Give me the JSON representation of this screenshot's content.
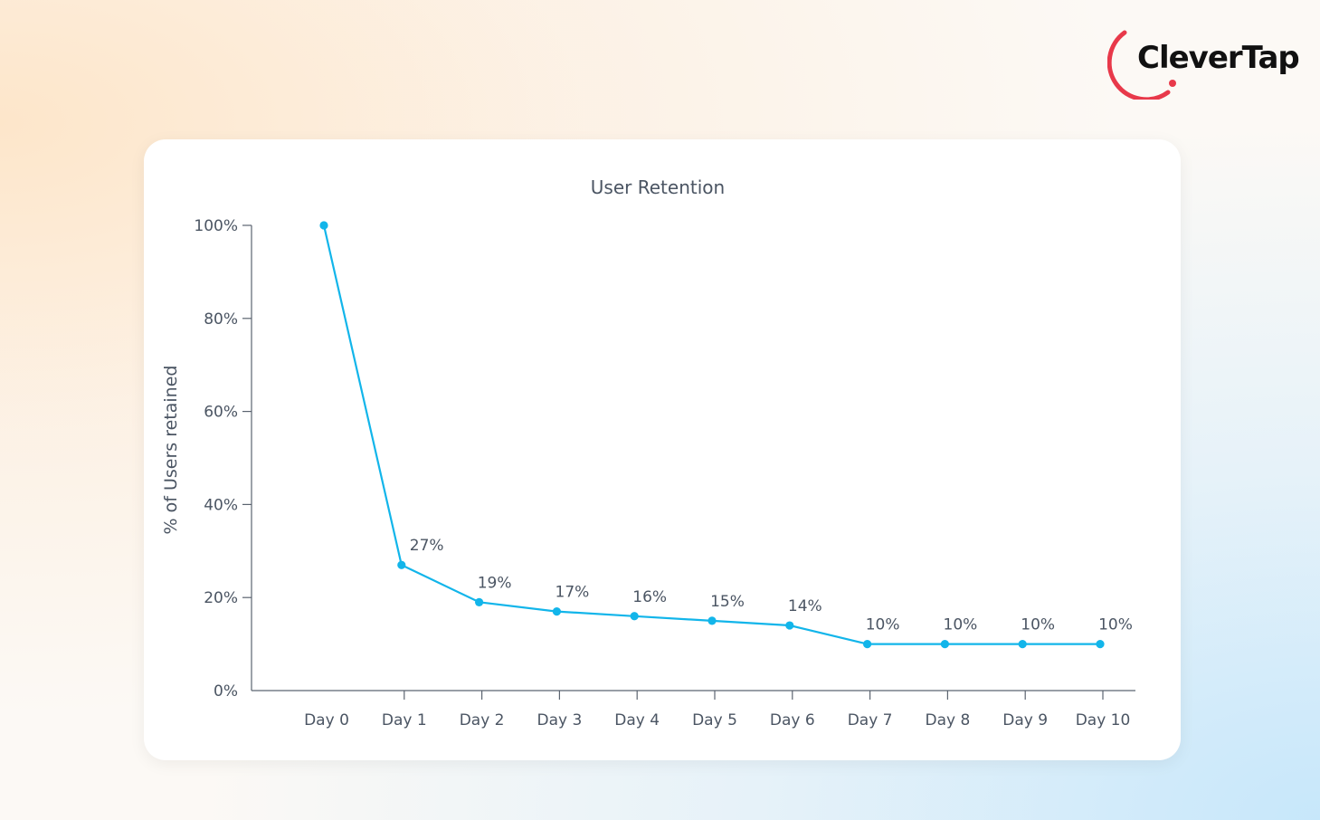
{
  "brand": {
    "name": "CleverTap",
    "accent_color": "#e8394a"
  },
  "chart_data": {
    "type": "line",
    "title": "User Retention",
    "xlabel": "",
    "ylabel": "% of Users retained",
    "categories": [
      "Day 0",
      "Day 1",
      "Day 2",
      "Day 3",
      "Day 4",
      "Day 5",
      "Day 6",
      "Day 7",
      "Day 8",
      "Day 9",
      "Day 10"
    ],
    "series": [
      {
        "values": [
          100,
          27,
          19,
          17,
          16,
          15,
          14,
          10,
          10,
          10,
          10
        ],
        "color": "#12b5ea"
      }
    ],
    "data_labels": [
      "",
      "27%",
      "19%",
      "17%",
      "16%",
      "15%",
      "14%",
      "10%",
      "10%",
      "10%",
      "10%"
    ],
    "yticks": [
      0,
      20,
      40,
      60,
      80,
      100
    ],
    "ytick_labels": [
      "0%",
      "20%",
      "40%",
      "60%",
      "80%",
      "100%"
    ],
    "ylim": [
      0,
      100
    ],
    "grid": false,
    "legend": "none"
  }
}
